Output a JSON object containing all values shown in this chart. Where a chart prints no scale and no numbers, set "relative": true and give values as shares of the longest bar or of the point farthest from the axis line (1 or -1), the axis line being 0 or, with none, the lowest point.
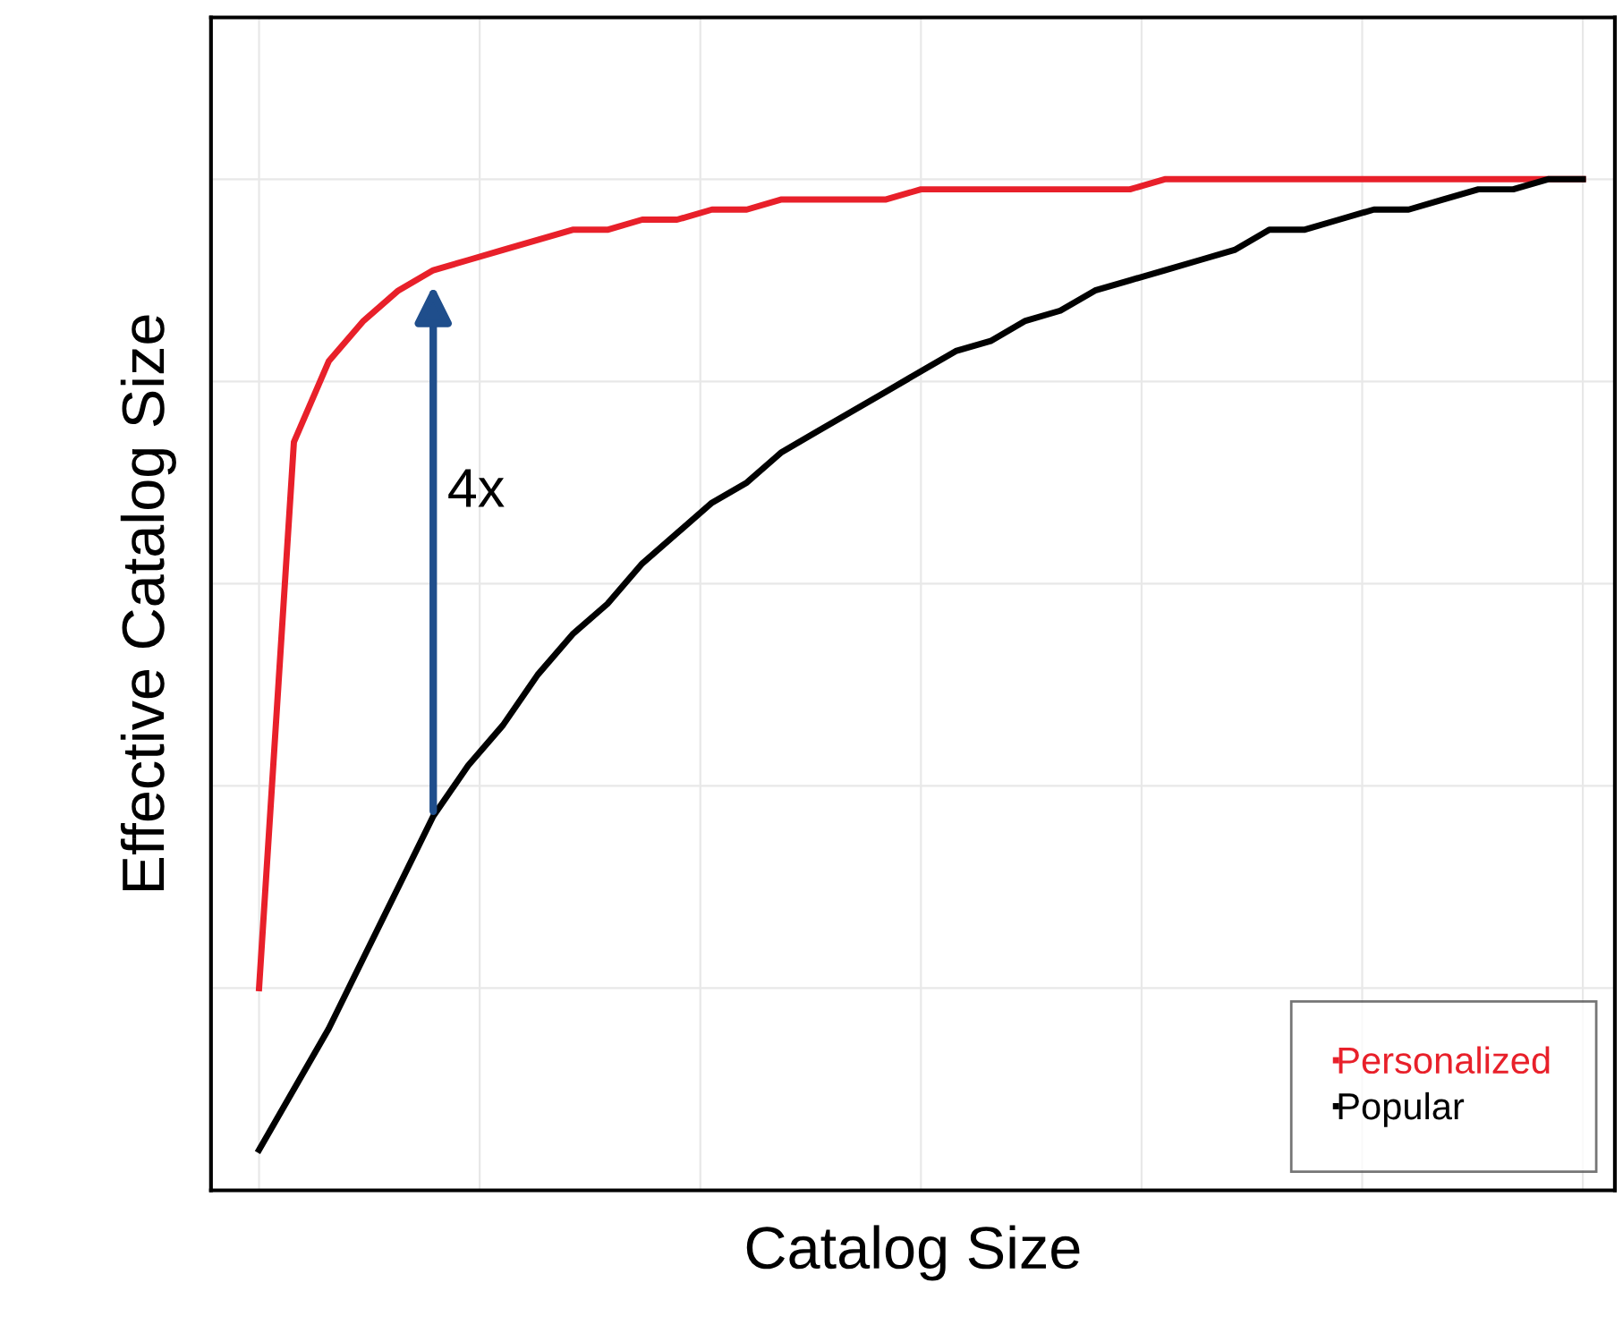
{
  "chart_data": {
    "type": "line",
    "relative": true,
    "xlabel": "Catalog Size",
    "ylabel": "Effective Catalog Size",
    "categories": [
      null,
      null,
      null,
      null,
      null,
      null,
      null,
      null,
      null,
      null,
      null,
      null,
      null,
      null,
      null,
      null,
      null,
      null,
      null,
      null,
      null,
      null,
      null,
      null,
      null,
      null,
      null,
      null,
      null,
      null,
      null,
      null,
      null,
      null,
      null,
      null,
      null,
      null,
      null
    ],
    "series": [
      {
        "name": "Personalized",
        "color": "#e8202a",
        "values": [
          0.2,
          0.74,
          0.82,
          0.86,
          0.89,
          0.91,
          0.92,
          0.93,
          0.94,
          0.95,
          0.95,
          0.96,
          0.96,
          0.97,
          0.97,
          0.98,
          0.98,
          0.98,
          0.98,
          0.99,
          0.99,
          0.99,
          0.99,
          0.99,
          0.99,
          0.99,
          1.0,
          1.0,
          1.0,
          1.0,
          1.0,
          1.0,
          1.0,
          1.0,
          1.0,
          1.0,
          1.0,
          1.0,
          1.0
        ]
      },
      {
        "name": "Popular",
        "color": "#000000",
        "values": [
          0.04,
          0.1,
          0.16,
          0.23,
          0.3,
          0.37,
          0.42,
          0.46,
          0.51,
          0.55,
          0.58,
          0.62,
          0.65,
          0.68,
          0.7,
          0.73,
          0.75,
          0.77,
          0.79,
          0.81,
          0.83,
          0.84,
          0.86,
          0.87,
          0.89,
          0.9,
          0.91,
          0.92,
          0.93,
          0.95,
          0.95,
          0.96,
          0.97,
          0.97,
          0.98,
          0.99,
          0.99,
          1.0,
          1.0
        ]
      }
    ],
    "annotations": [
      "4x"
    ],
    "grid": true,
    "legend": "bottom right",
    "marker": "none",
    "line_style": "solid"
  }
}
